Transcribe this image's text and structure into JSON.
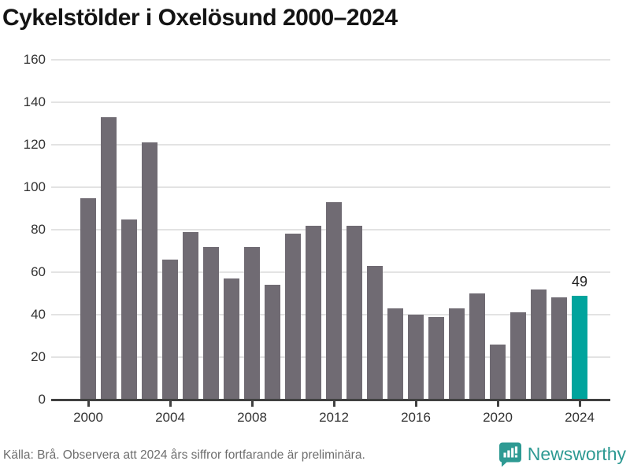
{
  "title": "Cykelstölder i Oxelösund 2000–2024",
  "chart_data": {
    "type": "bar",
    "title": "Cykelstölder i Oxelösund 2000–2024",
    "categories": [
      2000,
      2001,
      2002,
      2003,
      2004,
      2005,
      2006,
      2007,
      2008,
      2009,
      2010,
      2011,
      2012,
      2013,
      2014,
      2015,
      2016,
      2017,
      2018,
      2019,
      2020,
      2021,
      2022,
      2023,
      2024
    ],
    "values": [
      95,
      133,
      85,
      121,
      66,
      79,
      72,
      57,
      72,
      54,
      78,
      82,
      93,
      82,
      63,
      43,
      40,
      39,
      43,
      50,
      26,
      41,
      52,
      48,
      49
    ],
    "xlabel": "",
    "ylabel": "",
    "ylim": [
      0,
      160
    ],
    "ytick_step": 20,
    "xtick_labels": [
      2000,
      2004,
      2008,
      2012,
      2016,
      2020,
      2024
    ],
    "grid": true,
    "legend": "none",
    "highlight_category": 2024,
    "value_label": {
      "category": 2024,
      "text": "49"
    },
    "colors": {
      "bar": "#706b73",
      "highlight": "#00a49d",
      "gridline": "#e3e3e3",
      "axis": "#404040",
      "tick_label": "#333333"
    }
  },
  "footer": {
    "source": "Källa: Brå. Observera att 2024 års siffror fortfarande är preliminära.",
    "brand": "Newsworthy",
    "brand_color": "#2e9a93"
  },
  "icons": {
    "newsworthy_icon": "speech-bubble-bar-chart"
  }
}
